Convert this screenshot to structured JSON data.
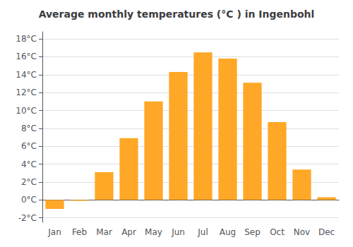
{
  "chart_data": {
    "type": "bar",
    "title": "Average monthly temperatures (°C ) in Ingenbohl",
    "categories": [
      "Jan",
      "Feb",
      "Mar",
      "Apr",
      "May",
      "Jun",
      "Jul",
      "Aug",
      "Sep",
      "Oct",
      "Nov",
      "Dec"
    ],
    "values": [
      -1.0,
      -0.1,
      3.1,
      6.9,
      11.0,
      14.3,
      16.5,
      15.8,
      13.1,
      8.7,
      3.4,
      0.3
    ],
    "color": "#FFA726",
    "ylim": [
      -2.5,
      18.8
    ],
    "yticks": [
      {
        "value": -2,
        "label": "-2°C"
      },
      {
        "value": 0,
        "label": "0°C"
      },
      {
        "value": 2,
        "label": "2°C"
      },
      {
        "value": 4,
        "label": "4°C"
      },
      {
        "value": 6,
        "label": "6°C"
      },
      {
        "value": 8,
        "label": "8°C"
      },
      {
        "value": 10,
        "label": "10°C"
      },
      {
        "value": 12,
        "label": "12°C"
      },
      {
        "value": 14,
        "label": "14°C"
      },
      {
        "value": 16,
        "label": "16°C"
      },
      {
        "value": 18,
        "label": "18°C"
      }
    ],
    "grid": true
  }
}
